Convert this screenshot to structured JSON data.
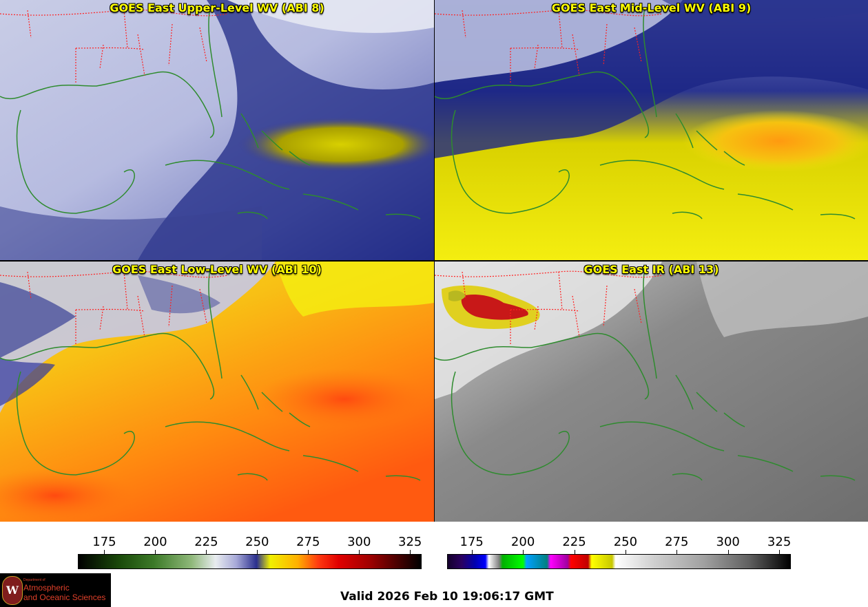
{
  "panels": [
    {
      "title": "GOES East Upper-Level WV (ABI 8)",
      "style": "upper"
    },
    {
      "title": "GOES East Mid-Level WV (ABI 9)",
      "style": "mid"
    },
    {
      "title": "GOES East Low-Level WV (ABI 10)",
      "style": "low"
    },
    {
      "title": "GOES East IR (ABI 13)",
      "style": "ir"
    }
  ],
  "colorbars": {
    "wv": {
      "ticks": [
        "175",
        "200",
        "225",
        "250",
        "275",
        "300",
        "325"
      ],
      "range": [
        162,
        330
      ],
      "tick_values": [
        175,
        200,
        225,
        250,
        275,
        300,
        325
      ]
    },
    "ir": {
      "ticks": [
        "175",
        "200",
        "225",
        "250",
        "275",
        "300",
        "325"
      ],
      "range": [
        163,
        330
      ],
      "tick_values": [
        175,
        200,
        225,
        250,
        275,
        300,
        325
      ]
    }
  },
  "colors": {
    "coastline": "#2e8b2e",
    "state_borders": "#ff2020",
    "title": "#ffff00"
  },
  "logo": {
    "dept": "Department of",
    "line1": "Atmospheric",
    "line2": "and Oceanic Sciences",
    "seal_letter": "W"
  },
  "valid_time": "Valid 2026 Feb 10 19:06:17 GMT"
}
